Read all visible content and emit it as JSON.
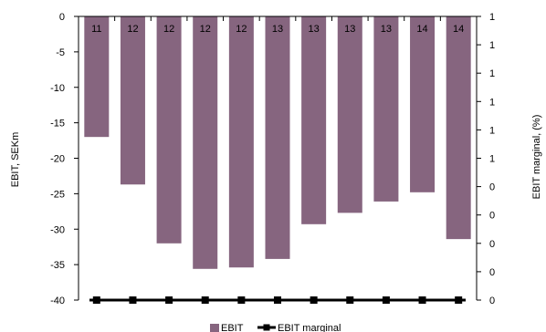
{
  "chart_data": {
    "type": "bar",
    "categories": [
      "",
      "",
      "",
      "",
      "",
      "",
      "",
      "",
      "",
      "",
      ""
    ],
    "series": [
      {
        "name": "EBIT",
        "type": "bar",
        "axis": "left",
        "color": "#86657f",
        "values": [
          -17.0,
          -23.7,
          -32.0,
          -35.6,
          -35.4,
          -34.2,
          -29.3,
          -27.7,
          -26.1,
          -24.8,
          -31.4
        ]
      },
      {
        "name": "EBIT marginal",
        "type": "line",
        "axis": "right",
        "color": "#000000",
        "values": [
          0,
          0,
          0,
          0,
          0,
          0,
          0,
          0,
          0,
          0,
          0
        ]
      }
    ],
    "bar_labels": [
      "11",
      "12",
      "12",
      "12",
      "12",
      "13",
      "13",
      "13",
      "13",
      "14",
      "14"
    ],
    "left_axis": {
      "label": "EBIT, SEKm",
      "ylim": [
        -40,
        0
      ],
      "ticks": [
        "0",
        "-5",
        "-10",
        "-15",
        "-20",
        "-25",
        "-30",
        "-35",
        "-40"
      ]
    },
    "right_axis": {
      "label": "EBIT marginal, (%)",
      "ticks": [
        "1",
        "1",
        "1",
        "1",
        "1",
        "1",
        "0",
        "0",
        "0",
        "0",
        "0"
      ]
    },
    "legend": {
      "position": "bottom",
      "items": [
        "EBIT",
        "EBIT marginal"
      ]
    },
    "grid": false
  }
}
